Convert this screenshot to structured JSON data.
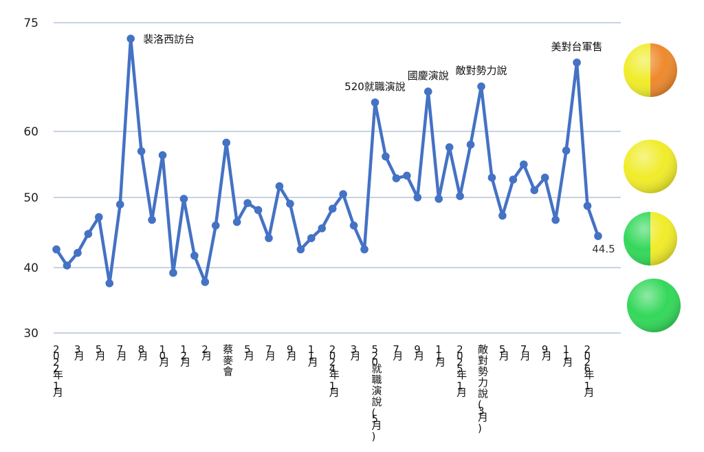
{
  "chart_data": {
    "type": "line",
    "title": "",
    "xlabel": "",
    "ylabel": "",
    "ylim": [
      30,
      75
    ],
    "y_ticks": [
      30,
      40,
      50,
      60,
      75
    ],
    "grid": true,
    "line_color": "#4472c4",
    "series": [
      {
        "name": "",
        "values": [
          42.6,
          40.3,
          42.1,
          44.8,
          47.2,
          37.6,
          49.0,
          72.8,
          57.0,
          46.8,
          56.4,
          39.2,
          49.8,
          41.7,
          37.8,
          46.0,
          58.3,
          46.5,
          49.2,
          48.2,
          44.2,
          51.7,
          49.1,
          42.6,
          44.2,
          45.6,
          48.4,
          50.5,
          46.0,
          42.6,
          64.0,
          56.2,
          52.9,
          53.3,
          50.0,
          65.5,
          49.8,
          57.6,
          50.2,
          58.0,
          66.2,
          53.0,
          47.4,
          52.7,
          55.0,
          51.1,
          53.0,
          46.8,
          57.1,
          69.5,
          48.8,
          44.5
        ]
      }
    ],
    "x_tick_labels": [
      {
        "index": 0,
        "label": "2022年1月"
      },
      {
        "index": 2,
        "label": "3月"
      },
      {
        "index": 4,
        "label": "5月"
      },
      {
        "index": 6,
        "label": "7月"
      },
      {
        "index": 8,
        "label": "8月"
      },
      {
        "index": 10,
        "label": "10月"
      },
      {
        "index": 12,
        "label": "12月"
      },
      {
        "index": 14,
        "label": "2月"
      },
      {
        "index": 16,
        "label": "蔡麥會"
      },
      {
        "index": 18,
        "label": "5月"
      },
      {
        "index": 20,
        "label": "7月"
      },
      {
        "index": 22,
        "label": "9月"
      },
      {
        "index": 24,
        "label": "11月"
      },
      {
        "index": 26,
        "label": "2024年1月"
      },
      {
        "index": 28,
        "label": "3月"
      },
      {
        "index": 30,
        "label": "520就職演說(5月)"
      },
      {
        "index": 32,
        "label": "7月"
      },
      {
        "index": 34,
        "label": "9月"
      },
      {
        "index": 36,
        "label": "11月"
      },
      {
        "index": 38,
        "label": "2025年1月"
      },
      {
        "index": 40,
        "label": "敵對勢力說(3月)"
      },
      {
        "index": 42,
        "label": "5月"
      },
      {
        "index": 44,
        "label": "7月"
      },
      {
        "index": 46,
        "label": "9月"
      },
      {
        "index": 48,
        "label": "11月"
      },
      {
        "index": 50,
        "label": "2026年1月"
      }
    ],
    "annotations": [
      {
        "index": 7,
        "text": "裴洛西訪台",
        "anchor": "start"
      },
      {
        "index": 30,
        "text": "520就職演說",
        "anchor": "middle"
      },
      {
        "index": 35,
        "text": "國慶演說",
        "anchor": "middle"
      },
      {
        "index": 40,
        "text": "敵對勢力說",
        "anchor": "middle"
      },
      {
        "index": 49,
        "text": "美對台軍售",
        "anchor": "middle"
      }
    ],
    "last_value_label": "44.5"
  },
  "legend_lights": [
    {
      "name": "yellow-orange-light",
      "colors": [
        "#f0ec2a",
        "#ee8a2e"
      ]
    },
    {
      "name": "yellow-light",
      "colors": [
        "#f0ec2a",
        "#f0ec2a"
      ]
    },
    {
      "name": "green-yellow-light",
      "colors": [
        "#34d85a",
        "#f0ec2a"
      ]
    },
    {
      "name": "green-light",
      "colors": [
        "#34d85a",
        "#34d85a"
      ]
    }
  ]
}
